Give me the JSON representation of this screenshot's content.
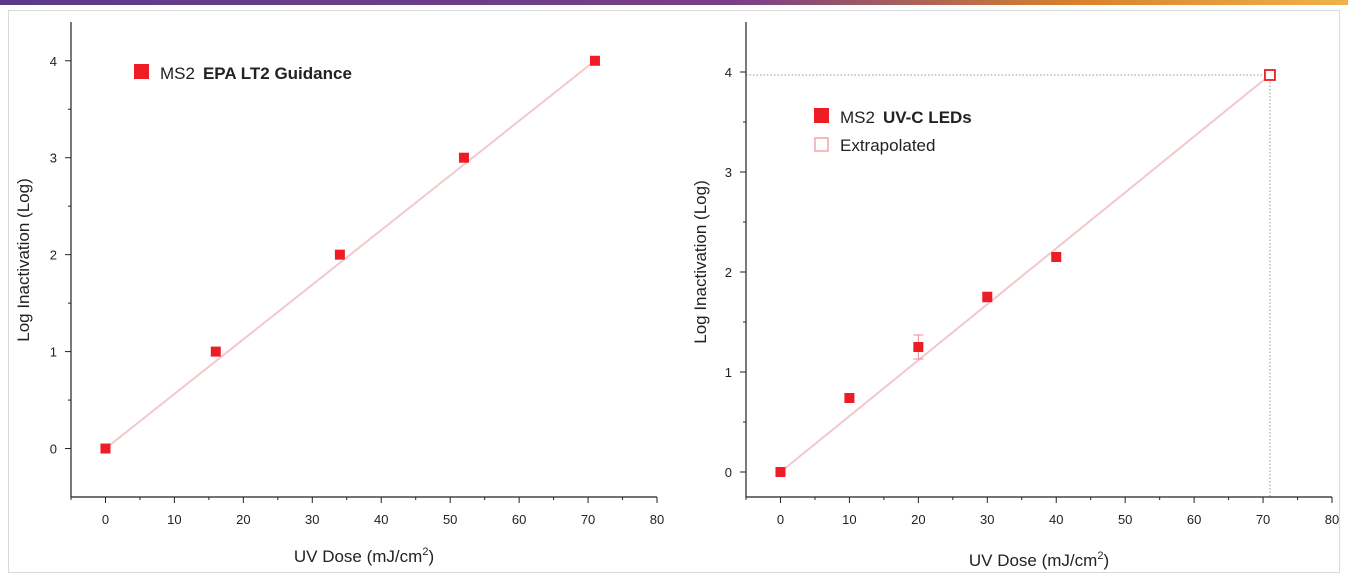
{
  "colors": {
    "marker": "#ee1c24",
    "fit_line": "#f3c8cc",
    "axis": "#222222",
    "guide": "#9a9a9a"
  },
  "chart_data": [
    {
      "type": "scatter",
      "xlabel": "UV Dose (mJ/cm",
      "xlabel_sup": "2",
      "xlabel_end": ")",
      "ylabel": "Log Inactivation (Log)",
      "xlim": [
        -5,
        80
      ],
      "ylim": [
        -0.5,
        4.4
      ],
      "xticks": [
        0,
        10,
        20,
        30,
        40,
        50,
        60,
        70,
        80
      ],
      "yticks": [
        0,
        1,
        2,
        3,
        4
      ],
      "legend_position": "top-left",
      "series": [
        {
          "name": "MS2",
          "name_bold": "EPA LT2 Guidance",
          "marker": "filled-square",
          "x": [
            0,
            16,
            34,
            52,
            71
          ],
          "y": [
            0,
            1,
            2,
            3,
            4
          ]
        }
      ],
      "fit_line": {
        "x": [
          0,
          71
        ],
        "y": [
          0,
          4
        ]
      }
    },
    {
      "type": "scatter",
      "xlabel": "UV Dose (mJ/cm",
      "xlabel_sup": "2",
      "xlabel_end": ")",
      "ylabel": "Log Inactivation (Log)",
      "xlim": [
        -5,
        80
      ],
      "ylim": [
        -0.25,
        4.5
      ],
      "xticks": [
        0,
        10,
        20,
        30,
        40,
        50,
        60,
        70,
        80
      ],
      "yticks": [
        0,
        1,
        2,
        3,
        4
      ],
      "legend_position": "top-left",
      "series": [
        {
          "name": "MS2",
          "name_bold": "UV-C LEDs",
          "marker": "filled-square",
          "x": [
            0,
            10,
            20,
            30,
            40
          ],
          "y": [
            0,
            0.74,
            1.25,
            1.75,
            2.15
          ],
          "yerr": [
            0.02,
            0.03,
            0.12,
            0.05,
            0.03
          ]
        },
        {
          "name": "Extrapolated",
          "marker": "open-square",
          "x": [
            71
          ],
          "y": [
            3.97
          ]
        }
      ],
      "fit_line": {
        "x": [
          0,
          71
        ],
        "y": [
          0,
          3.97
        ]
      },
      "guide_lines": {
        "x": 71,
        "y": 3.97
      }
    }
  ]
}
